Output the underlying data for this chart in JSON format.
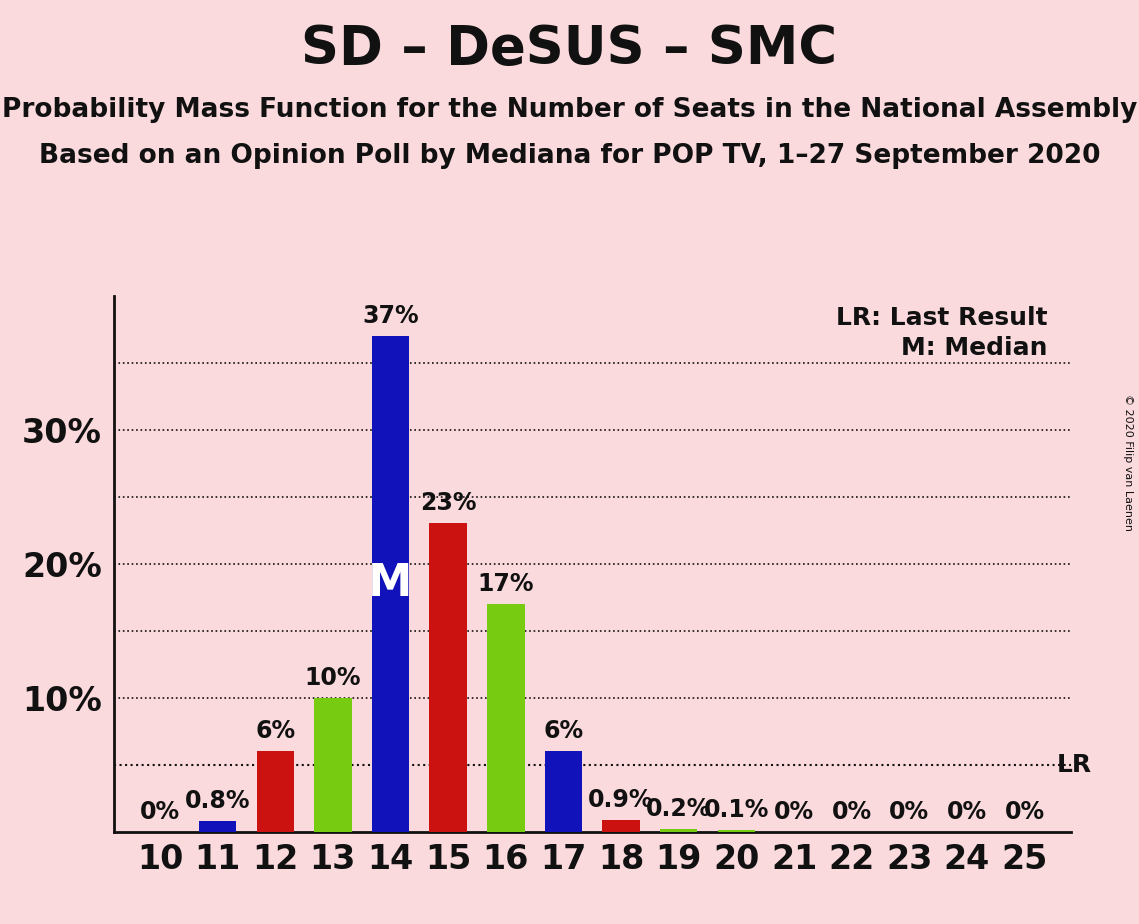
{
  "title": "SD – DeSUS – SMC",
  "subtitle1": "Probability Mass Function for the Number of Seats in the National Assembly",
  "subtitle2": "Based on an Opinion Poll by Mediana for POP TV, 1–27 September 2020",
  "copyright": "© 2020 Filip van Laenen",
  "background_color": "#FADADD",
  "seats": [
    10,
    11,
    12,
    13,
    14,
    15,
    16,
    17,
    18,
    19,
    20,
    21,
    22,
    23,
    24,
    25
  ],
  "blue_values": [
    0.0,
    0.8,
    0.0,
    0.0,
    37.0,
    0.0,
    0.0,
    6.0,
    0.0,
    0.0,
    0.0,
    0.0,
    0.0,
    0.0,
    0.0,
    0.0
  ],
  "red_values": [
    0.0,
    0.0,
    6.0,
    0.0,
    0.0,
    23.0,
    0.0,
    0.0,
    0.9,
    0.0,
    0.0,
    0.0,
    0.0,
    0.0,
    0.0,
    0.0
  ],
  "green_values": [
    0.0,
    0.0,
    0.0,
    10.0,
    0.0,
    0.0,
    17.0,
    0.0,
    0.0,
    0.2,
    0.1,
    0.0,
    0.0,
    0.0,
    0.0,
    0.0
  ],
  "blue_color": "#1212BB",
  "red_color": "#CC1111",
  "green_color": "#77CC11",
  "bar_width": 0.65,
  "ylim_max": 40,
  "lr_value": 5.0,
  "median_seat": 14,
  "legend_text_lr": "LR: Last Result",
  "legend_text_m": "M: Median",
  "seat_labels": [
    10,
    11,
    12,
    13,
    14,
    15,
    16,
    17,
    18,
    19,
    20,
    21,
    22,
    23,
    24,
    25
  ],
  "bar_label_texts": [
    "0%",
    "0.8%",
    "6%",
    "10%",
    "37%",
    "23%",
    "17%",
    "6%",
    "0.9%",
    "0.2%",
    "0.1%",
    "0%",
    "0%",
    "0%",
    "0%",
    "0%"
  ],
  "bar_label_values": [
    0.0,
    0.8,
    6.0,
    10.0,
    37.0,
    23.0,
    17.0,
    6.0,
    0.9,
    0.2,
    0.1,
    0.0,
    0.0,
    0.0,
    0.0,
    0.0
  ],
  "title_fontsize": 38,
  "subtitle_fontsize": 19,
  "tick_fontsize": 24,
  "label_fontsize": 17,
  "ytick_label_fontsize": 24,
  "title_color": "#111111",
  "median_label_fontsize": 32,
  "legend_fontsize": 18,
  "copyright_fontsize": 8
}
